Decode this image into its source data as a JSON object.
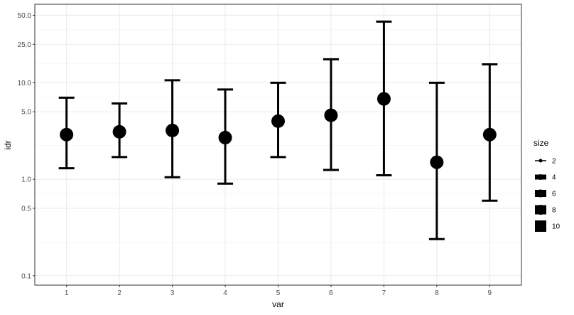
{
  "chart_data": {
    "type": "scatter",
    "subtype": "point-with-errorbars",
    "title": "",
    "xlabel": "var",
    "ylabel": "idr",
    "x_categories": [
      "1",
      "2",
      "3",
      "4",
      "5",
      "6",
      "7",
      "8",
      "9"
    ],
    "y_scale": "log10",
    "ylim": [
      0.08,
      65
    ],
    "y_ticks": [
      0.1,
      0.5,
      1.0,
      5.0,
      10.0,
      25.0,
      50.0
    ],
    "y_tick_labels": [
      "0.1",
      "0.5",
      "1.0",
      "5.0",
      "10.0",
      "25.0",
      "50.0"
    ],
    "grid": true,
    "points": [
      {
        "x": "1",
        "y": 2.9,
        "lower": 1.3,
        "upper": 7.0
      },
      {
        "x": "2",
        "y": 3.1,
        "lower": 1.7,
        "upper": 6.1
      },
      {
        "x": "3",
        "y": 3.2,
        "lower": 1.05,
        "upper": 10.6
      },
      {
        "x": "4",
        "y": 2.7,
        "lower": 0.9,
        "upper": 8.5
      },
      {
        "x": "5",
        "y": 4.0,
        "lower": 1.7,
        "upper": 10.0
      },
      {
        "x": "6",
        "y": 4.6,
        "lower": 1.25,
        "upper": 17.5
      },
      {
        "x": "7",
        "y": 6.8,
        "lower": 1.1,
        "upper": 43.0
      },
      {
        "x": "8",
        "y": 1.5,
        "lower": 0.24,
        "upper": 10.0
      },
      {
        "x": "9",
        "y": 2.9,
        "lower": 0.6,
        "upper": 15.5
      }
    ],
    "color": "#000000",
    "legend": {
      "title": "size",
      "position": "right",
      "entries": [
        "2",
        "4",
        "6",
        "8",
        "10"
      ]
    }
  }
}
